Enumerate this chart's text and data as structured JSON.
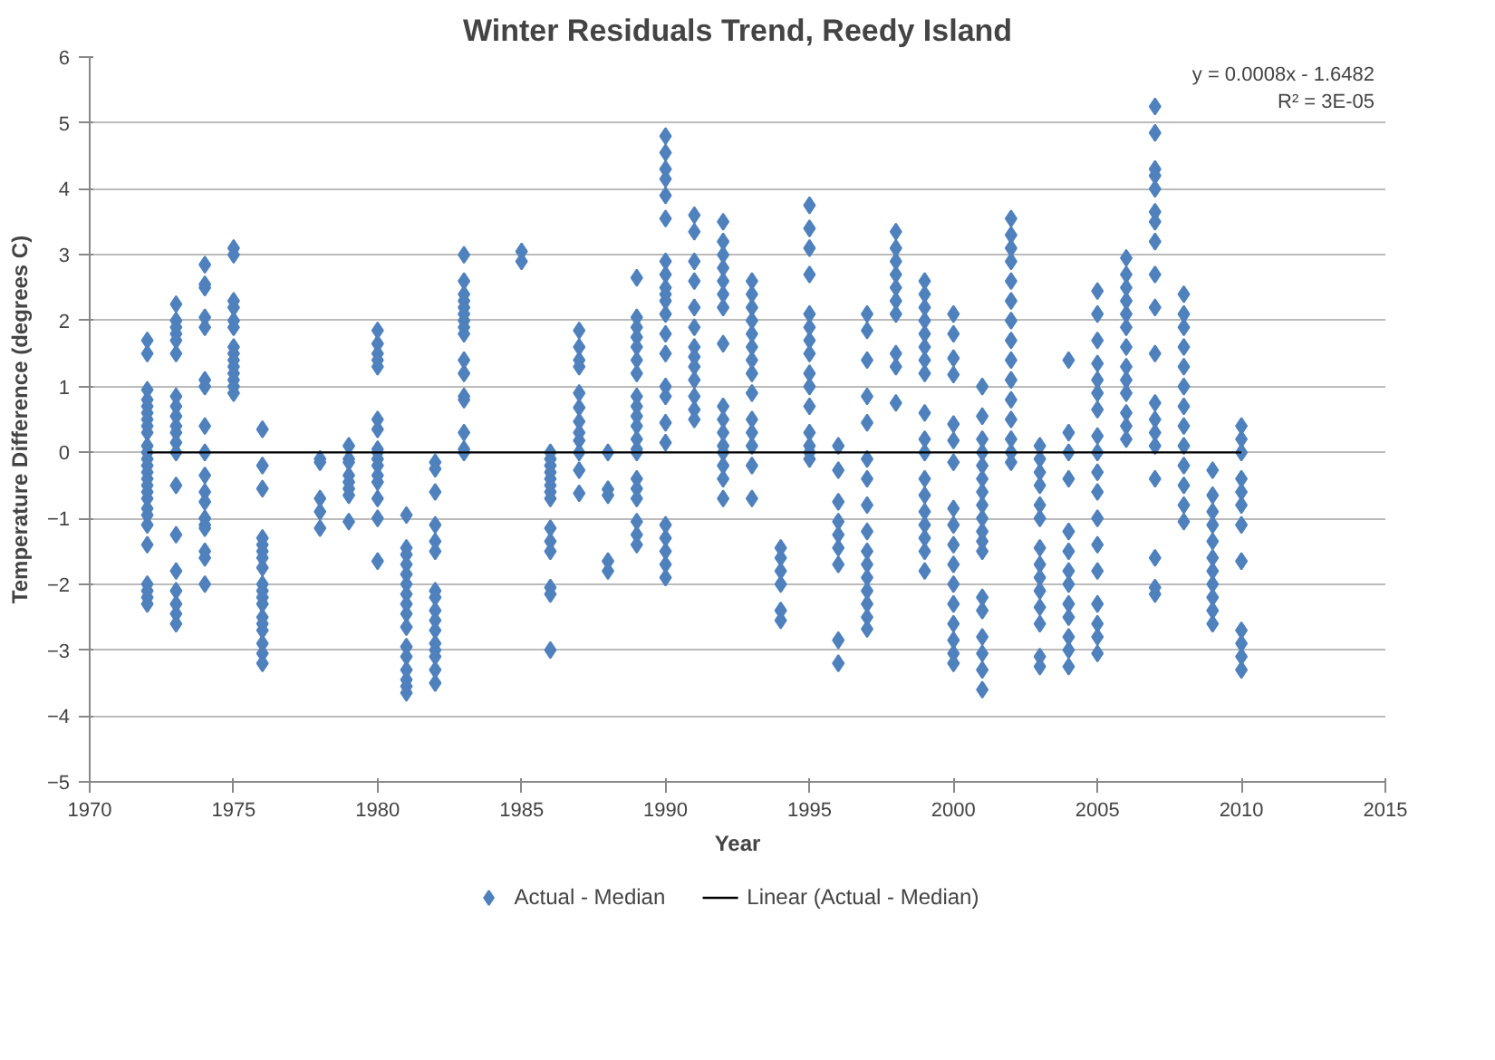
{
  "chart_data": {
    "type": "scatter",
    "title": "Winter Residuals Trend, Reedy Island",
    "xlabel": "Year",
    "ylabel": "Temperature Difference (degrees C)",
    "xlim": [
      1970,
      2015
    ],
    "xticks": [
      1970,
      1975,
      1980,
      1985,
      1990,
      1995,
      2000,
      2005,
      2010,
      2015
    ],
    "ylim": [
      -5,
      6
    ],
    "yticks": [
      -5,
      -4,
      -3,
      -2,
      -1,
      0,
      1,
      2,
      3,
      4,
      5,
      6
    ],
    "grid": "y",
    "legend": "bottom",
    "annotations": [
      "y = 0.0008x - 1.6482",
      "R² = 3E-05"
    ],
    "series": [
      {
        "name": "Actual - Median",
        "marker": "diamond",
        "color": "#4f81bd",
        "x": [
          1972,
          1972,
          1972,
          1972,
          1972,
          1972,
          1972,
          1972,
          1972,
          1972,
          1972,
          1972,
          1972,
          1972,
          1972,
          1972,
          1972,
          1972,
          1972,
          1972,
          1972,
          1972,
          1972,
          1972,
          1972,
          1972,
          1973,
          1973,
          1973,
          1973,
          1973,
          1973,
          1973,
          1973,
          1973,
          1973,
          1973,
          1973,
          1973,
          1973,
          1973,
          1973,
          1973,
          1973,
          1973,
          1973,
          1974,
          1974,
          1974,
          1974,
          1974,
          1974,
          1974,
          1974,
          1974,
          1974,
          1974,
          1974,
          1974,
          1974,
          1974,
          1974,
          1974,
          1974,
          1975,
          1975,
          1975,
          1975,
          1975,
          1975,
          1975,
          1975,
          1975,
          1975,
          1975,
          1975,
          1975,
          1975,
          1976,
          1976,
          1976,
          1976,
          1976,
          1976,
          1976,
          1976,
          1976,
          1976,
          1976,
          1976,
          1976,
          1976,
          1976,
          1976,
          1976,
          1976,
          1978,
          1978,
          1978,
          1978,
          1978,
          1979,
          1979,
          1979,
          1979,
          1979,
          1979,
          1979,
          1979,
          1980,
          1980,
          1980,
          1980,
          1980,
          1980,
          1980,
          1980,
          1980,
          1980,
          1980,
          1980,
          1980,
          1980,
          1980,
          1980,
          1981,
          1981,
          1981,
          1981,
          1981,
          1981,
          1981,
          1981,
          1981,
          1981,
          1981,
          1981,
          1981,
          1981,
          1981,
          1981,
          1982,
          1982,
          1982,
          1982,
          1982,
          1982,
          1982,
          1982,
          1982,
          1982,
          1982,
          1982,
          1982,
          1982,
          1982,
          1982,
          1983,
          1983,
          1983,
          1983,
          1983,
          1983,
          1983,
          1983,
          1983,
          1983,
          1983,
          1983,
          1983,
          1983,
          1983,
          1983,
          1985,
          1985,
          1986,
          1986,
          1986,
          1986,
          1986,
          1986,
          1986,
          1986,
          1986,
          1986,
          1986,
          1986,
          1986,
          1986,
          1987,
          1987,
          1987,
          1987,
          1987,
          1987,
          1987,
          1987,
          1987,
          1987,
          1987,
          1987,
          1988,
          1988,
          1988,
          1988,
          1988,
          1989,
          1989,
          1989,
          1989,
          1989,
          1989,
          1989,
          1989,
          1989,
          1989,
          1989,
          1989,
          1989,
          1989,
          1989,
          1989,
          1989,
          1989,
          1989,
          1989,
          1990,
          1990,
          1990,
          1990,
          1990,
          1990,
          1990,
          1990,
          1990,
          1990,
          1990,
          1990,
          1990,
          1990,
          1990,
          1990,
          1990,
          1990,
          1990,
          1990,
          1990,
          1990,
          1990,
          1991,
          1991,
          1991,
          1991,
          1991,
          1991,
          1991,
          1991,
          1991,
          1991,
          1991,
          1991,
          1991,
          1992,
          1992,
          1992,
          1992,
          1992,
          1992,
          1992,
          1992,
          1992,
          1992,
          1992,
          1992,
          1992,
          1992,
          1992,
          1992,
          1993,
          1993,
          1993,
          1993,
          1993,
          1993,
          1993,
          1993,
          1993,
          1993,
          1993,
          1993,
          1993,
          1993,
          1994,
          1994,
          1994,
          1994,
          1994,
          1994,
          1995,
          1995,
          1995,
          1995,
          1995,
          1995,
          1995,
          1995,
          1995,
          1995,
          1995,
          1995,
          1995,
          1995,
          1995,
          1996,
          1996,
          1996,
          1996,
          1996,
          1996,
          1996,
          1996,
          1996,
          1997,
          1997,
          1997,
          1997,
          1997,
          1997,
          1997,
          1997,
          1997,
          1997,
          1997,
          1997,
          1997,
          1997,
          1997,
          1997,
          1998,
          1998,
          1998,
          1998,
          1998,
          1998,
          1998,
          1998,
          1998,
          1998,
          1999,
          1999,
          1999,
          1999,
          1999,
          1999,
          1999,
          1999,
          1999,
          1999,
          1999,
          1999,
          1999,
          1999,
          1999,
          1999,
          1999,
          1999,
          2000,
          2000,
          2000,
          2000,
          2000,
          2000,
          2000,
          2000,
          2000,
          2000,
          2000,
          2000,
          2000,
          2000,
          2000,
          2000,
          2000,
          2001,
          2001,
          2001,
          2001,
          2001,
          2001,
          2001,
          2001,
          2001,
          2001,
          2001,
          2001,
          2001,
          2001,
          2001,
          2001,
          2001,
          2001,
          2002,
          2002,
          2002,
          2002,
          2002,
          2002,
          2002,
          2002,
          2002,
          2002,
          2002,
          2002,
          2002,
          2002,
          2002,
          2003,
          2003,
          2003,
          2003,
          2003,
          2003,
          2003,
          2003,
          2003,
          2003,
          2003,
          2003,
          2003,
          2003,
          2004,
          2004,
          2004,
          2004,
          2004,
          2004,
          2004,
          2004,
          2004,
          2004,
          2004,
          2004,
          2004,
          2005,
          2005,
          2005,
          2005,
          2005,
          2005,
          2005,
          2005,
          2005,
          2005,
          2005,
          2005,
          2005,
          2005,
          2005,
          2005,
          2005,
          2005,
          2006,
          2006,
          2006,
          2006,
          2006,
          2006,
          2006,
          2006,
          2006,
          2006,
          2006,
          2006,
          2006,
          2007,
          2007,
          2007,
          2007,
          2007,
          2007,
          2007,
          2007,
          2007,
          2007,
          2007,
          2007,
          2007,
          2007,
          2007,
          2007,
          2007,
          2007,
          2007,
          2008,
          2008,
          2008,
          2008,
          2008,
          2008,
          2008,
          2008,
          2008,
          2008,
          2008,
          2008,
          2008,
          2009,
          2009,
          2009,
          2009,
          2009,
          2009,
          2009,
          2009,
          2009,
          2009,
          2009,
          2010,
          2010,
          2010,
          2010,
          2010,
          2010,
          2010,
          2010,
          2010,
          2010,
          2010,
          2010
        ],
        "values": [
          1.7,
          1.5,
          0.95,
          0.8,
          0.7,
          0.6,
          0.5,
          0.4,
          0.3,
          0.1,
          0,
          -0.1,
          -0.2,
          -0.3,
          -0.4,
          -0.5,
          -0.6,
          -0.7,
          -0.85,
          -0.95,
          -1.1,
          -1.4,
          -2.0,
          -2.1,
          -2.2,
          -2.3,
          2.25,
          2.0,
          1.9,
          1.8,
          1.7,
          1.5,
          0.85,
          0.7,
          0.55,
          0.4,
          0.3,
          0.15,
          0,
          -0.5,
          -1.25,
          -1.8,
          -2.1,
          -2.3,
          -2.45,
          -2.6,
          2.85,
          2.55,
          2.5,
          2.05,
          1.9,
          1.1,
          1.0,
          0.4,
          0,
          -0.35,
          -0.6,
          -0.75,
          -1.0,
          -1.1,
          -1.15,
          -1.5,
          -1.6,
          -2.0,
          3.1,
          3.0,
          2.3,
          2.2,
          2.0,
          1.9,
          1.6,
          1.5,
          1.4,
          1.3,
          1.2,
          1.1,
          1.0,
          0.9,
          0.35,
          -0.2,
          -0.55,
          -1.3,
          -1.4,
          -1.5,
          -1.6,
          -1.75,
          -2.0,
          -2.1,
          -2.2,
          -2.3,
          -2.5,
          -2.6,
          -2.7,
          -2.9,
          -3.05,
          -3.2,
          -0.1,
          -0.15,
          -0.7,
          -0.9,
          -1.15,
          0.1,
          -0.1,
          -0.15,
          -0.35,
          -0.45,
          -0.55,
          -0.65,
          -1.05,
          1.85,
          1.65,
          1.5,
          1.4,
          1.3,
          0.5,
          0.35,
          0.05,
          0,
          -0.1,
          -0.2,
          -0.35,
          -0.45,
          -0.7,
          -1.0,
          -1.65,
          -0.95,
          -1.45,
          -1.55,
          -1.7,
          -1.85,
          -2.0,
          -2.15,
          -2.3,
          -2.45,
          -2.65,
          -2.95,
          -3.1,
          -3.3,
          -3.45,
          -3.55,
          -3.65,
          -0.15,
          -0.25,
          -0.6,
          -1.1,
          -1.35,
          -1.5,
          -2.1,
          -2.2,
          -2.4,
          -2.55,
          -2.7,
          -2.9,
          -3.0,
          -3.1,
          -3.3,
          -3.5,
          3.0,
          2.6,
          2.4,
          2.3,
          2.2,
          2.1,
          2.0,
          1.9,
          1.8,
          1.4,
          1.2,
          0.85,
          0.8,
          0.3,
          0.05,
          0,
          3.05,
          2.9,
          0,
          -0.1,
          -0.2,
          -0.3,
          -0.4,
          -0.5,
          -0.6,
          -0.7,
          -1.15,
          -1.35,
          -1.5,
          -2.05,
          -2.15,
          -3.0,
          1.85,
          1.6,
          1.4,
          1.3,
          0.9,
          0.68,
          0.47,
          0.3,
          0.18,
          0,
          -0.27,
          -0.62,
          0,
          -0.56,
          -0.65,
          -1.65,
          -1.8,
          2.65,
          2.05,
          1.9,
          1.75,
          1.6,
          1.4,
          1.2,
          0.85,
          0.7,
          0.55,
          0.4,
          0.2,
          0.05,
          0,
          -0.4,
          -0.55,
          -0.7,
          -1.05,
          -1.25,
          -1.4,
          4.8,
          4.55,
          4.3,
          4.15,
          3.9,
          3.55,
          2.9,
          2.7,
          2.5,
          2.4,
          2.3,
          2.1,
          1.8,
          1.5,
          1.0,
          0.85,
          0.45,
          0.15,
          -1.1,
          -1.3,
          -1.5,
          -1.7,
          -1.9,
          3.6,
          3.35,
          2.9,
          2.6,
          2.2,
          1.9,
          1.6,
          1.45,
          1.3,
          1.1,
          0.85,
          0.65,
          0.5,
          3.5,
          3.2,
          3.0,
          2.8,
          2.6,
          2.4,
          2.2,
          1.65,
          0.7,
          0.5,
          0.3,
          0.1,
          0,
          -0.2,
          -0.4,
          -0.7,
          2.6,
          2.4,
          2.2,
          2.0,
          1.8,
          1.6,
          1.4,
          1.2,
          0.9,
          0.5,
          0.3,
          0.1,
          -0.2,
          -0.7,
          -1.45,
          -1.6,
          -1.8,
          -2.0,
          -2.4,
          -2.55,
          3.75,
          3.4,
          3.1,
          2.7,
          2.1,
          1.9,
          1.7,
          1.5,
          1.2,
          1.0,
          0.7,
          0.3,
          0.1,
          -0.1,
          0,
          0.1,
          -0.27,
          -0.75,
          -1.05,
          -1.25,
          -1.45,
          -1.7,
          -2.85,
          -3.2,
          2.1,
          1.85,
          1.4,
          0.85,
          0.45,
          -0.1,
          -0.4,
          -0.8,
          -1.2,
          -1.5,
          -1.7,
          -1.9,
          -2.1,
          -2.3,
          -2.5,
          -2.68,
          3.35,
          3.1,
          2.9,
          2.7,
          2.5,
          2.3,
          2.1,
          1.5,
          1.3,
          0.75,
          2.6,
          2.4,
          2.2,
          2.0,
          1.8,
          1.6,
          1.4,
          1.2,
          0.6,
          0.2,
          0,
          -0.65,
          -0.9,
          -1.1,
          -1.3,
          -1.5,
          -1.8,
          -0.4,
          2.1,
          1.8,
          1.43,
          1.18,
          0.43,
          0.18,
          -0.15,
          -0.85,
          -1.1,
          -1.4,
          -1.7,
          -2.0,
          -2.3,
          -2.6,
          -2.85,
          -3.05,
          -3.2,
          1.0,
          0.55,
          0.2,
          0,
          -0.2,
          -0.4,
          -0.6,
          -0.8,
          -1.0,
          -1.2,
          -1.5,
          -2.2,
          -2.4,
          -2.8,
          -3.05,
          -3.3,
          -3.6,
          -1.35,
          3.55,
          3.3,
          3.1,
          2.9,
          2.6,
          2.3,
          2.0,
          1.7,
          1.4,
          1.1,
          0.8,
          0.5,
          0.2,
          0,
          -0.15,
          0.1,
          -0.1,
          -0.3,
          -0.5,
          -0.8,
          -1.0,
          -1.45,
          -1.7,
          -1.9,
          -2.1,
          -2.35,
          -2.6,
          -3.1,
          -3.25,
          1.4,
          0.3,
          0,
          -0.4,
          -1.2,
          -1.5,
          -1.8,
          -2.0,
          -2.3,
          -2.5,
          -2.8,
          -3.0,
          -3.25,
          2.45,
          2.1,
          1.7,
          1.35,
          1.1,
          0.9,
          0.65,
          0.25,
          0,
          -0.3,
          -0.6,
          -1.0,
          -1.4,
          -1.8,
          -2.3,
          -2.6,
          -2.8,
          -3.05,
          2.95,
          2.7,
          2.5,
          2.3,
          2.1,
          1.9,
          1.6,
          1.3,
          1.1,
          0.9,
          0.6,
          0.4,
          0.2,
          5.25,
          4.85,
          4.3,
          4.2,
          4.0,
          3.65,
          3.5,
          3.2,
          2.7,
          2.2,
          1.5,
          0.75,
          0.5,
          0.3,
          0.1,
          -0.4,
          -1.6,
          -2.05,
          -2.15,
          2.4,
          2.1,
          1.9,
          1.6,
          1.3,
          1.0,
          0.7,
          0.4,
          0.1,
          -0.2,
          -0.5,
          -0.8,
          -1.05,
          -0.27,
          -0.65,
          -0.9,
          -1.1,
          -1.35,
          -1.6,
          -1.8,
          -2.0,
          -2.2,
          -2.4,
          -2.6,
          0.4,
          0.2,
          0,
          -0.4,
          -0.6,
          -0.8,
          -1.1,
          -1.65,
          -2.7,
          -2.9,
          -3.1,
          -3.3
        ]
      },
      {
        "name": "Linear (Actual - Median)",
        "type": "line",
        "color": "#000000",
        "x": [
          1972,
          2010
        ],
        "values": [
          0,
          0
        ]
      }
    ]
  }
}
